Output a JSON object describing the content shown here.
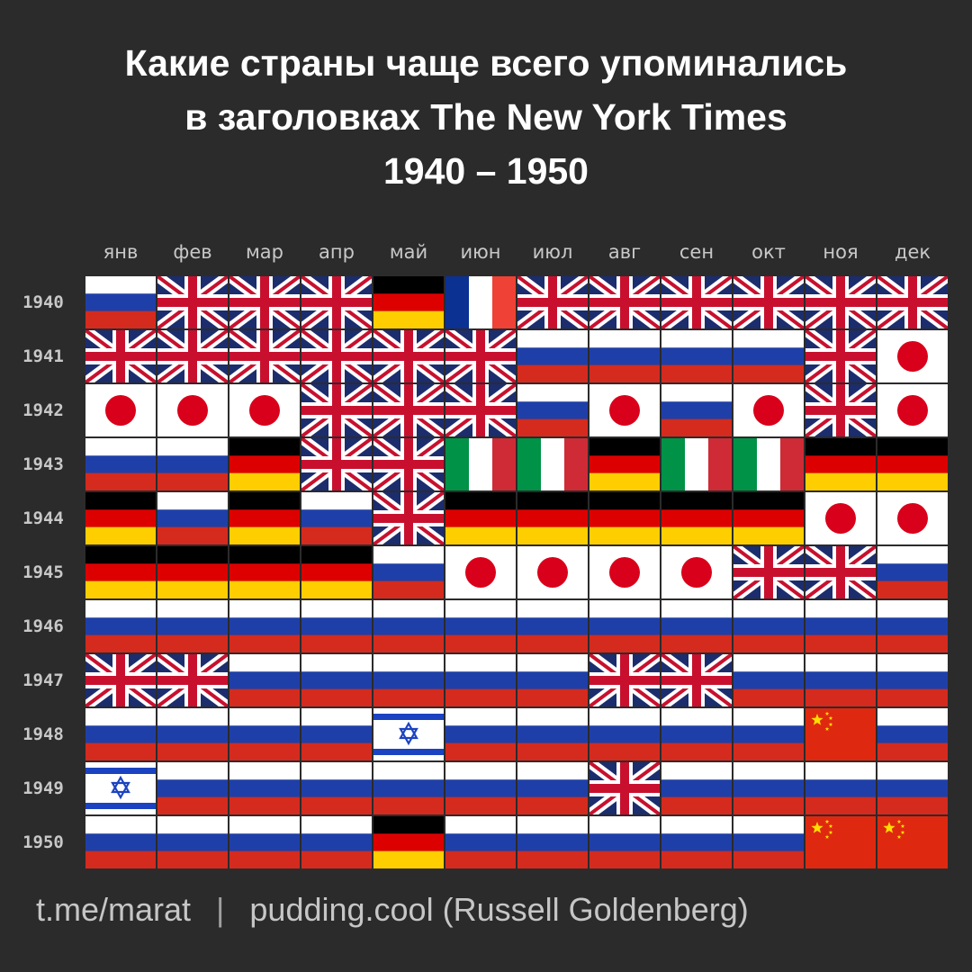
{
  "title": {
    "line1": "Какие страны чаще всего упоминались",
    "line2": "в заголовках The New York Times",
    "line3": "1940 – 1950"
  },
  "footer": {
    "left": "t.me/marat",
    "separator": "|",
    "right": "pudding.cool (Russell Goldenberg)"
  },
  "colors": {
    "background": "#2b2b2b",
    "uk_blue": "#1c2d6e",
    "uk_red": "#c8102e",
    "russia_blue": "#1f3fa8",
    "russia_red": "#d52b1e",
    "germany_red": "#dd0000",
    "germany_gold": "#ffce00",
    "japan_red": "#d9001b",
    "italy_green": "#009246",
    "italy_red": "#ce2b37",
    "france_blue": "#0b3193",
    "france_red": "#ef4135",
    "israel_blue": "#1b43c1",
    "china_red": "#de2910",
    "china_yellow": "#ffde00"
  },
  "chart_data": {
    "type": "table",
    "columns": [
      "янв",
      "фев",
      "мар",
      "апр",
      "май",
      "июн",
      "июл",
      "авг",
      "сен",
      "окт",
      "ноя",
      "дек"
    ],
    "rows": [
      {
        "year": "1940",
        "countries": [
          "russia",
          "uk",
          "uk",
          "uk",
          "germany",
          "france",
          "uk",
          "uk",
          "uk",
          "uk",
          "uk",
          "uk"
        ]
      },
      {
        "year": "1941",
        "countries": [
          "uk",
          "uk",
          "uk",
          "uk",
          "uk",
          "uk",
          "russia",
          "russia",
          "russia",
          "russia",
          "uk",
          "japan"
        ]
      },
      {
        "year": "1942",
        "countries": [
          "japan",
          "japan",
          "japan",
          "uk",
          "uk",
          "uk",
          "russia",
          "japan",
          "russia",
          "japan",
          "uk",
          "japan"
        ]
      },
      {
        "year": "1943",
        "countries": [
          "russia",
          "russia",
          "germany",
          "uk",
          "uk",
          "italy",
          "italy",
          "germany",
          "italy",
          "italy",
          "germany",
          "germany"
        ]
      },
      {
        "year": "1944",
        "countries": [
          "germany",
          "russia",
          "germany",
          "russia",
          "uk",
          "germany",
          "germany",
          "germany",
          "germany",
          "germany",
          "japan",
          "japan"
        ]
      },
      {
        "year": "1945",
        "countries": [
          "germany",
          "germany",
          "germany",
          "germany",
          "russia",
          "japan",
          "japan",
          "japan",
          "japan",
          "uk",
          "uk",
          "russia"
        ]
      },
      {
        "year": "1946",
        "countries": [
          "russia",
          "russia",
          "russia",
          "russia",
          "russia",
          "russia",
          "russia",
          "russia",
          "russia",
          "russia",
          "russia",
          "russia"
        ]
      },
      {
        "year": "1947",
        "countries": [
          "uk",
          "uk",
          "russia",
          "russia",
          "russia",
          "russia",
          "russia",
          "uk",
          "uk",
          "russia",
          "russia",
          "russia"
        ]
      },
      {
        "year": "1948",
        "countries": [
          "russia",
          "russia",
          "russia",
          "russia",
          "israel",
          "russia",
          "russia",
          "russia",
          "russia",
          "russia",
          "china",
          "russia"
        ]
      },
      {
        "year": "1949",
        "countries": [
          "israel",
          "russia",
          "russia",
          "russia",
          "russia",
          "russia",
          "russia",
          "uk",
          "russia",
          "russia",
          "russia",
          "russia"
        ]
      },
      {
        "year": "1950",
        "countries": [
          "russia",
          "russia",
          "russia",
          "russia",
          "germany",
          "russia",
          "russia",
          "russia",
          "russia",
          "russia",
          "china",
          "china"
        ]
      }
    ]
  }
}
